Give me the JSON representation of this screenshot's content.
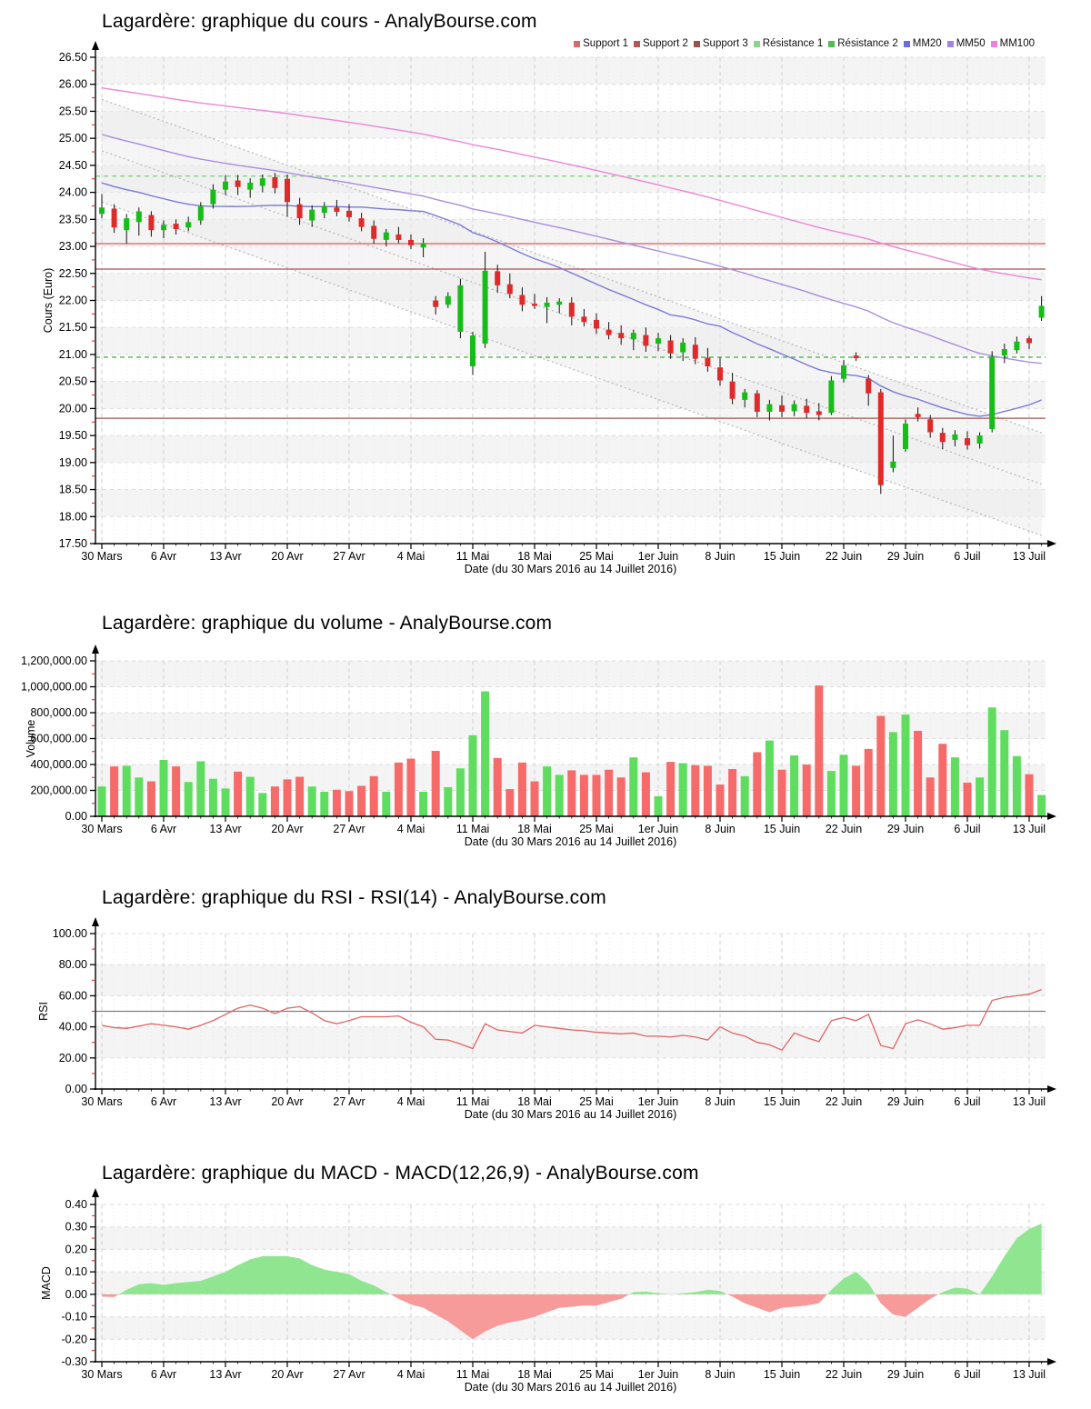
{
  "x_axis": {
    "label": "Date (du 30 Mars 2016 au 14 Juillet 2016)",
    "tick_labels": [
      "30 Mars",
      "6 Avr",
      "13 Avr",
      "20 Avr",
      "27 Avr",
      "4 Mai",
      "11 Mai",
      "18 Mai",
      "25 Mai",
      "1er Juin",
      "8 Juin",
      "15 Juin",
      "22 Juin",
      "29 Juin",
      "6 Juil",
      "13 Juil"
    ],
    "tick_every": 5,
    "n_points": 77
  },
  "chart_data": [
    {
      "id": "price",
      "type": "candlestick",
      "title": "Lagardère: graphique du cours - AnalyBourse.com",
      "ylabel": "Cours (Euro)",
      "ylim": [
        17.5,
        26.5
      ],
      "y_step": 0.5,
      "y_minor_step": 0.25,
      "y_tick_labels": [
        "17.50",
        "18.00",
        "18.50",
        "19.00",
        "19.50",
        "20.00",
        "20.50",
        "21.00",
        "21.50",
        "22.00",
        "22.50",
        "23.00",
        "23.50",
        "24.00",
        "24.50",
        "25.00",
        "25.50",
        "26.00",
        "26.50"
      ],
      "legend": [
        {
          "label": "Support 1",
          "color": "#d96a6a"
        },
        {
          "label": "Support 2",
          "color": "#b25858"
        },
        {
          "label": "Support 3",
          "color": "#9e5151"
        },
        {
          "label": "Résistance 1",
          "color": "#86d886"
        },
        {
          "label": "Résistance 2",
          "color": "#4fbf4f"
        },
        {
          "label": "MM20",
          "color": "#6b6bdc"
        },
        {
          "label": "MM50",
          "color": "#a384e0"
        },
        {
          "label": "MM100",
          "color": "#ef7fe0"
        }
      ],
      "colors": {
        "up": "#16bd16",
        "down": "#e02a2a",
        "wick": "#111111"
      },
      "support_resistance": [
        {
          "name": "Support 1",
          "value": 23.05,
          "color": "#d96a6a",
          "dash": false
        },
        {
          "name": "Support 2",
          "value": 22.58,
          "color": "#a85454",
          "dash": false
        },
        {
          "name": "Support 3",
          "value": 19.82,
          "color": "#a85050",
          "dash": false
        },
        {
          "name": "Résistance 1",
          "value": 24.3,
          "color": "#7fd07f",
          "dash": true
        },
        {
          "name": "Résistance 2",
          "value": 20.95,
          "color": "#4db04d",
          "dash": true
        }
      ],
      "moving_averages": [
        {
          "name": "MM20",
          "period": 20,
          "color": "#7a7ad8"
        },
        {
          "name": "MM50",
          "period": 50,
          "color": "#a98ddd"
        },
        {
          "name": "MM100",
          "period": 100,
          "color": "#ec85d8"
        }
      ],
      "prehistory_estimate": {
        "depth": 100,
        "base": 23.6,
        "slope_recent": 0.06,
        "days_recent": 50,
        "start_older": 26.6,
        "slope_older": 0.008
      },
      "regression_channel": {
        "upper": [
          25.72,
          19.55
        ],
        "median": [
          24.77,
          18.6
        ],
        "lower": [
          23.82,
          17.65
        ],
        "fill": "#ececec",
        "line_color": "#b5b5b5"
      },
      "candles": [
        [
          23.6,
          23.97,
          23.52,
          23.72
        ],
        [
          23.7,
          23.78,
          23.25,
          23.35
        ],
        [
          23.3,
          23.6,
          23.05,
          23.52
        ],
        [
          23.45,
          23.72,
          23.2,
          23.65
        ],
        [
          23.58,
          23.65,
          23.18,
          23.3
        ],
        [
          23.3,
          23.48,
          23.15,
          23.4
        ],
        [
          23.42,
          23.5,
          23.22,
          23.32
        ],
        [
          23.35,
          23.55,
          23.28,
          23.45
        ],
        [
          23.48,
          23.82,
          23.4,
          23.74
        ],
        [
          23.78,
          24.15,
          23.7,
          24.05
        ],
        [
          24.05,
          24.32,
          23.95,
          24.2
        ],
        [
          24.22,
          24.32,
          23.95,
          24.1
        ],
        [
          24.05,
          24.26,
          23.9,
          24.18
        ],
        [
          24.12,
          24.33,
          24.0,
          24.26
        ],
        [
          24.28,
          24.36,
          23.98,
          24.08
        ],
        [
          24.25,
          24.33,
          23.55,
          23.82
        ],
        [
          23.78,
          23.9,
          23.4,
          23.52
        ],
        [
          23.48,
          23.76,
          23.36,
          23.68
        ],
        [
          23.62,
          23.82,
          23.52,
          23.74
        ],
        [
          23.72,
          23.86,
          23.56,
          23.64
        ],
        [
          23.66,
          23.78,
          23.46,
          23.54
        ],
        [
          23.52,
          23.62,
          23.28,
          23.36
        ],
        [
          23.38,
          23.48,
          23.05,
          23.14
        ],
        [
          23.12,
          23.32,
          23.0,
          23.26
        ],
        [
          23.22,
          23.36,
          23.06,
          23.12
        ],
        [
          23.12,
          23.22,
          22.95,
          23.02
        ],
        [
          22.98,
          23.15,
          22.8,
          23.06
        ],
        [
          22.0,
          22.08,
          21.74,
          21.88
        ],
        [
          21.92,
          22.15,
          21.86,
          22.08
        ],
        [
          21.42,
          22.4,
          21.3,
          22.28
        ],
        [
          20.78,
          21.42,
          20.62,
          21.35
        ],
        [
          21.2,
          22.9,
          21.12,
          22.55
        ],
        [
          22.54,
          22.66,
          22.14,
          22.28
        ],
        [
          22.3,
          22.5,
          22.04,
          22.12
        ],
        [
          22.1,
          22.24,
          21.8,
          21.92
        ],
        [
          21.94,
          22.12,
          21.84,
          21.9
        ],
        [
          21.88,
          22.06,
          21.58,
          21.96
        ],
        [
          21.92,
          22.04,
          21.76,
          21.98
        ],
        [
          21.96,
          22.06,
          21.54,
          21.7
        ],
        [
          21.7,
          21.84,
          21.52,
          21.6
        ],
        [
          21.64,
          21.76,
          21.38,
          21.48
        ],
        [
          21.46,
          21.6,
          21.28,
          21.36
        ],
        [
          21.4,
          21.54,
          21.18,
          21.3
        ],
        [
          21.28,
          21.46,
          21.08,
          21.4
        ],
        [
          21.36,
          21.5,
          21.05,
          21.16
        ],
        [
          21.2,
          21.4,
          21.06,
          21.3
        ],
        [
          21.26,
          21.36,
          20.92,
          21.02
        ],
        [
          21.04,
          21.3,
          20.88,
          21.22
        ],
        [
          21.18,
          21.32,
          20.82,
          20.92
        ],
        [
          20.94,
          21.12,
          20.68,
          20.78
        ],
        [
          20.76,
          20.94,
          20.42,
          20.52
        ],
        [
          20.5,
          20.66,
          20.08,
          20.18
        ],
        [
          20.16,
          20.36,
          20.02,
          20.3
        ],
        [
          20.28,
          20.34,
          19.84,
          19.94
        ],
        [
          19.94,
          20.16,
          19.78,
          20.08
        ],
        [
          20.06,
          20.24,
          19.84,
          19.94
        ],
        [
          19.95,
          20.15,
          19.86,
          20.08
        ],
        [
          20.05,
          20.18,
          19.82,
          19.92
        ],
        [
          19.95,
          20.1,
          19.78,
          19.88
        ],
        [
          19.92,
          20.6,
          19.88,
          20.52
        ],
        [
          20.55,
          20.9,
          20.48,
          20.8
        ],
        [
          20.98,
          21.04,
          20.88,
          20.93
        ],
        [
          20.55,
          20.62,
          20.05,
          20.28
        ],
        [
          20.3,
          20.36,
          18.42,
          18.58
        ],
        [
          18.9,
          19.5,
          18.82,
          19.02
        ],
        [
          19.25,
          19.8,
          19.2,
          19.72
        ],
        [
          19.9,
          20.02,
          19.76,
          19.84
        ],
        [
          19.8,
          19.88,
          19.46,
          19.56
        ],
        [
          19.55,
          19.64,
          19.25,
          19.38
        ],
        [
          19.42,
          19.6,
          19.3,
          19.52
        ],
        [
          19.45,
          19.58,
          19.24,
          19.32
        ],
        [
          19.35,
          19.56,
          19.26,
          19.5
        ],
        [
          19.62,
          21.06,
          19.56,
          20.96
        ],
        [
          20.98,
          21.2,
          20.84,
          21.1
        ],
        [
          21.08,
          21.33,
          21.02,
          21.24
        ],
        [
          21.3,
          21.34,
          21.1,
          21.21
        ],
        [
          21.68,
          22.08,
          21.62,
          21.9
        ]
      ]
    },
    {
      "id": "volume",
      "type": "bar",
      "title": "Lagardère: graphique du volume - AnalyBourse.com",
      "ylabel": "Volume",
      "ylim": [
        0,
        1200000
      ],
      "y_step": 200000,
      "y_minor_step": 100000,
      "y_tick_labels": [
        "0.00",
        "200,000.00",
        "400,000.00",
        "600,000.00",
        "800,000.00",
        "1,000,000.00",
        "1,200,000.00"
      ],
      "colors": {
        "up": "#5fdd5f",
        "down": "#f66a6a"
      },
      "values": [
        230000,
        385000,
        390000,
        300000,
        270000,
        435000,
        385000,
        265000,
        425000,
        290000,
        215000,
        345000,
        305000,
        180000,
        230000,
        285000,
        305000,
        230000,
        190000,
        205000,
        195000,
        235000,
        310000,
        190000,
        415000,
        445000,
        190000,
        505000,
        225000,
        370000,
        625000,
        965000,
        450000,
        210000,
        415000,
        270000,
        385000,
        320000,
        355000,
        320000,
        320000,
        360000,
        300000,
        455000,
        340000,
        155000,
        420000,
        410000,
        395000,
        390000,
        245000,
        365000,
        310000,
        495000,
        585000,
        360000,
        470000,
        400000,
        1010000,
        350000,
        475000,
        390000,
        520000,
        775000,
        650000,
        785000,
        660000,
        300000,
        560000,
        455000,
        260000,
        300000,
        840000,
        665000,
        465000,
        325000,
        165000
      ]
    },
    {
      "id": "rsi",
      "type": "line",
      "title": "Lagardère: graphique du RSI - RSI(14) - AnalyBourse.com",
      "ylabel": "RSI",
      "ylim": [
        0,
        100
      ],
      "y_step": 20,
      "y_minor_step": 10,
      "y_tick_labels": [
        "0.00",
        "20.00",
        "40.00",
        "60.00",
        "80.00",
        "100.00"
      ],
      "midline": 50,
      "midline_color": "#808080",
      "line_color": "#e06464",
      "values": [
        41,
        39.5,
        39,
        40.5,
        42,
        41,
        40,
        38.5,
        41,
        44,
        48,
        52,
        54,
        52,
        48.5,
        52,
        53,
        49,
        44,
        42,
        44,
        46.5,
        46.5,
        46.5,
        47,
        43,
        40,
        32,
        31.5,
        29,
        26,
        42,
        38,
        37,
        36,
        41,
        40,
        39,
        38,
        37.5,
        36.5,
        36,
        35.5,
        36,
        34,
        34,
        33.5,
        34.5,
        33.5,
        31.5,
        40,
        36,
        34,
        30,
        28.5,
        25,
        36,
        33,
        30.5,
        44,
        46,
        44,
        48,
        28,
        26,
        42,
        44.5,
        42,
        38.5,
        39.5,
        41,
        41,
        57,
        59,
        60,
        61,
        64
      ]
    },
    {
      "id": "macd",
      "type": "area",
      "title": "Lagardère: graphique du MACD - MACD(12,26,9) - AnalyBourse.com",
      "ylabel": "MACD",
      "ylim": [
        -0.3,
        0.4
      ],
      "y_step": 0.1,
      "y_minor_step": 0.05,
      "y_tick_labels": [
        "-0.30",
        "-0.20",
        "-0.10",
        "0.00",
        "0.10",
        "0.20",
        "0.30",
        "0.40"
      ],
      "colors": {
        "pos": "#90e690",
        "neg": "#f79a9a"
      },
      "values": [
        -0.01,
        -0.012,
        0.02,
        0.045,
        0.05,
        0.042,
        0.05,
        0.055,
        0.06,
        0.08,
        0.1,
        0.13,
        0.155,
        0.17,
        0.17,
        0.17,
        0.16,
        0.13,
        0.11,
        0.1,
        0.09,
        0.06,
        0.04,
        0.01,
        -0.02,
        -0.045,
        -0.06,
        -0.09,
        -0.12,
        -0.16,
        -0.2,
        -0.165,
        -0.14,
        -0.125,
        -0.115,
        -0.1,
        -0.08,
        -0.06,
        -0.055,
        -0.05,
        -0.05,
        -0.035,
        -0.02,
        0.01,
        0.012,
        0.005,
        0,
        0.005,
        0.01,
        0.02,
        0.015,
        -0.01,
        -0.04,
        -0.06,
        -0.08,
        -0.06,
        -0.055,
        -0.05,
        -0.04,
        0.02,
        0.07,
        0.1,
        0.05,
        -0.04,
        -0.09,
        -0.1,
        -0.06,
        -0.02,
        0.01,
        0.03,
        0.025,
        0,
        0.08,
        0.17,
        0.25,
        0.29,
        0.315
      ]
    }
  ]
}
